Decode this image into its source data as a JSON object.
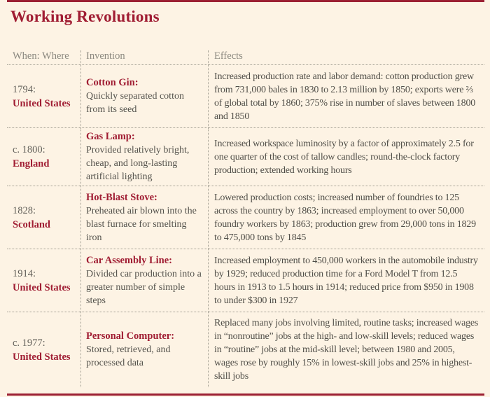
{
  "page": {
    "title": "Working Revolutions",
    "colors": {
      "background": "#fdf3e4",
      "accent_maroon": "#a01d33",
      "rule_maroon": "#9c2033",
      "header_text": "#8b887f",
      "body_text": "#504e48",
      "dotted_rule": "#a29e92"
    }
  },
  "table": {
    "headers": [
      "When: Where",
      "Invention",
      "Effects"
    ],
    "rows": [
      {
        "when": "1794:",
        "where": "United States",
        "invention_name": "Cotton Gin:",
        "invention_desc": "Quickly separated cotton from its seed",
        "effects": "Increased production rate and labor demand: cotton production grew from 731,000 bales in 1830 to 2.13 million by 1850; exports were ⅔ of global total by 1860; 375% rise in number of slaves between 1800 and 1850"
      },
      {
        "when": "c. 1800:",
        "where": "England",
        "invention_name": "Gas Lamp:",
        "invention_desc": "Provided relatively bright, cheap, and long-lasting artificial lighting",
        "effects": "Increased workspace luminosity by a factor of approximately 2.5 for one quarter of the cost of tallow candles; round-the-clock factory production; extended working hours"
      },
      {
        "when": "1828:",
        "where": "Scotland",
        "invention_name": "Hot-Blast Stove:",
        "invention_desc": "Preheated air blown into the blast furnace for smelting iron",
        "effects": "Lowered production costs; increased number of foundries to 125 across the country by 1863; increased employment to over 50,000 foundry workers by 1863; production grew from 29,000 tons in 1829 to 475,000 tons by 1845"
      },
      {
        "when": "1914:",
        "where": "United States",
        "invention_name": "Car Assembly Line:",
        "invention_desc": "Divided car production into a greater number of simple steps",
        "effects": "Increased employment to 450,000 workers in the automobile industry by 1929; reduced production time for a Ford Model T from 12.5 hours in 1913 to 1.5 hours in 1914; reduced price from $950 in 1908 to under $300 in 1927"
      },
      {
        "when": "c. 1977:",
        "where": "United States",
        "invention_name": "Personal Computer:",
        "invention_desc": "Stored, retrieved, and processed data",
        "effects": "Replaced many jobs involving limited, routine tasks; increased wages in “nonroutine” jobs at the high- and low-skill levels; reduced wages in “routine” jobs at the mid-skill level; between 1980 and 2005, wages rose by roughly 15% in lowest-skill jobs and 25% in highest-skill jobs"
      }
    ]
  }
}
